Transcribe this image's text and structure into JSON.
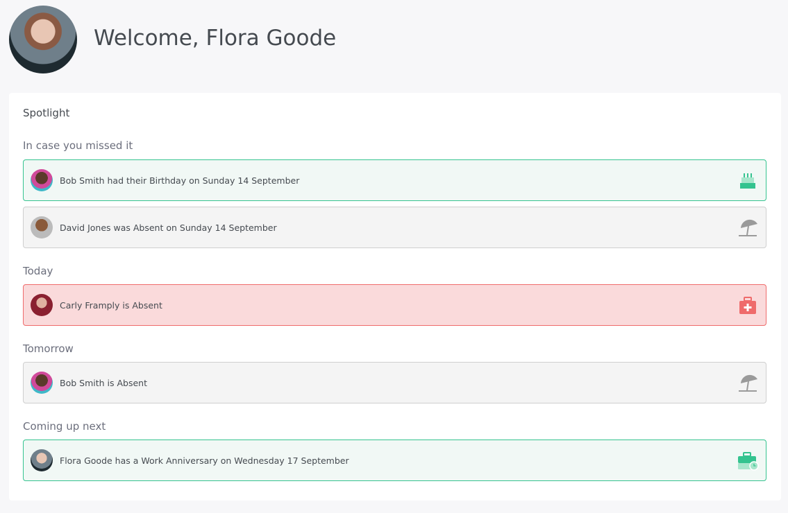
{
  "header": {
    "title": "Welcome, Flora Goode"
  },
  "spotlight": {
    "title": "Spotlight",
    "sections": [
      {
        "heading": "In case you missed it",
        "items": [
          {
            "text": "Bob Smith had their Birthday on Sunday 14 September",
            "icon": "birthday-cake-icon",
            "style": "green"
          },
          {
            "text": "David Jones was Absent on Sunday 14 September",
            "icon": "beach-umbrella-icon",
            "style": "gray"
          }
        ]
      },
      {
        "heading": "Today",
        "items": [
          {
            "text": "Carly Framply is Absent",
            "icon": "medical-kit-icon",
            "style": "red"
          }
        ]
      },
      {
        "heading": "Tomorrow",
        "items": [
          {
            "text": "Bob Smith is Absent",
            "icon": "beach-umbrella-icon",
            "style": "gray"
          }
        ]
      },
      {
        "heading": "Coming up next",
        "items": [
          {
            "text": "Flora Goode has a Work Anniversary on Wednesday 17 September",
            "icon": "briefcase-clock-icon",
            "style": "green"
          }
        ]
      }
    ]
  },
  "colors": {
    "green": "#34c38f",
    "gray": "#9a9a9a",
    "red": "#ef6b6b"
  }
}
